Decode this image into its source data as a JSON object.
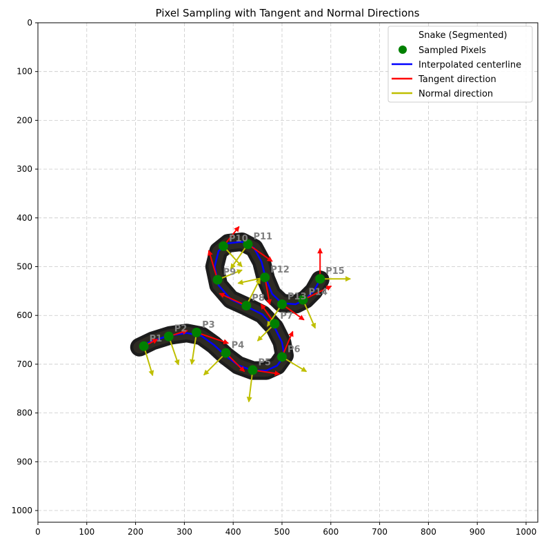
{
  "chart_data": {
    "type": "scatter",
    "title": "Pixel Sampling with Tangent and Normal Directions",
    "xlabel": "",
    "ylabel": "",
    "xlim": [
      0,
      1024
    ],
    "ylim": [
      1024,
      0
    ],
    "x_ticks": [
      "0",
      "100",
      "200",
      "300",
      "400",
      "500",
      "600",
      "700",
      "800",
      "900",
      "1000"
    ],
    "y_ticks": [
      "0",
      "100",
      "200",
      "300",
      "400",
      "500",
      "600",
      "700",
      "800",
      "900",
      "1000"
    ],
    "grid": true,
    "legend_position": "top-right",
    "legend": [
      {
        "label": "Snake (Segmented)",
        "marker": "none"
      },
      {
        "label": "Sampled Pixels",
        "marker": "circle",
        "color": "#008000"
      },
      {
        "label": "Interpolated centerline",
        "marker": "line",
        "color": "#0000ff"
      },
      {
        "label": "Tangent direction",
        "marker": "line",
        "color": "#ff0000"
      },
      {
        "label": "Normal direction",
        "marker": "line",
        "color": "#bfbf00"
      }
    ],
    "colors": {
      "snake": "#1c1c1c",
      "points": "#008000",
      "centerline": "#0000ff",
      "tangent": "#ff0000",
      "normal": "#bfbf00",
      "labels": "#808080"
    },
    "points": [
      {
        "label": "P1",
        "x": 217,
        "y": 663,
        "tx": 28,
        "ty": -14,
        "nx": 18,
        "ny": 60
      },
      {
        "label": "P2",
        "x": 268,
        "y": 643,
        "tx": 38,
        "ty": -12,
        "nx": 20,
        "ny": 58
      },
      {
        "label": "P3",
        "x": 325,
        "y": 635,
        "tx": 65,
        "ty": 22,
        "nx": -10,
        "ny": 65
      },
      {
        "label": "P4",
        "x": 385,
        "y": 677,
        "tx": 38,
        "ty": 38,
        "nx": -45,
        "ny": 45
      },
      {
        "label": "P5",
        "x": 440,
        "y": 712,
        "tx": 55,
        "ty": 8,
        "nx": -8,
        "ny": 65
      },
      {
        "label": "P6",
        "x": 500,
        "y": 685,
        "tx": 22,
        "ty": -52,
        "nx": 50,
        "ny": 30
      },
      {
        "label": "P7",
        "x": 485,
        "y": 617,
        "tx": -28,
        "ty": -40,
        "nx": -35,
        "ny": 35
      },
      {
        "label": "P8",
        "x": 427,
        "y": 580,
        "tx": -55,
        "ty": -25,
        "nx": 28,
        "ny": -55
      },
      {
        "label": "P9",
        "x": 368,
        "y": 527,
        "tx": -18,
        "ty": -60,
        "nx": 50,
        "ny": -20
      },
      {
        "label": "P10",
        "x": 380,
        "y": 458,
        "tx": 32,
        "ty": -40,
        "nx": 38,
        "ny": 42
      },
      {
        "label": "P11",
        "x": 430,
        "y": 454,
        "tx": 50,
        "ty": 35,
        "nx": -35,
        "ny": 50
      },
      {
        "label": "P12",
        "x": 465,
        "y": 522,
        "tx": 10,
        "ty": 55,
        "nx": -55,
        "ny": 12
      },
      {
        "label": "P13",
        "x": 500,
        "y": 577,
        "tx": 45,
        "ty": 32,
        "nx": -30,
        "ny": 45
      },
      {
        "label": "P14",
        "x": 543,
        "y": 568,
        "tx": 58,
        "ty": -28,
        "nx": 25,
        "ny": 58
      },
      {
        "label": "P15",
        "x": 578,
        "y": 525,
        "tx": 0,
        "ty": -62,
        "nx": 62,
        "ny": 0
      }
    ],
    "centerline": [
      [
        208,
        665
      ],
      [
        235,
        652
      ],
      [
        270,
        641
      ],
      [
        305,
        636
      ],
      [
        335,
        642
      ],
      [
        360,
        660
      ],
      [
        385,
        683
      ],
      [
        410,
        702
      ],
      [
        440,
        713
      ],
      [
        468,
        713
      ],
      [
        490,
        703
      ],
      [
        505,
        682
      ],
      [
        500,
        655
      ],
      [
        485,
        625
      ],
      [
        460,
        598
      ],
      [
        428,
        582
      ],
      [
        395,
        567
      ],
      [
        370,
        538
      ],
      [
        362,
        500
      ],
      [
        370,
        468
      ],
      [
        390,
        452
      ],
      [
        418,
        449
      ],
      [
        443,
        462
      ],
      [
        458,
        490
      ],
      [
        467,
        525
      ],
      [
        480,
        556
      ],
      [
        500,
        575
      ],
      [
        528,
        577
      ],
      [
        548,
        567
      ],
      [
        565,
        550
      ],
      [
        578,
        527
      ]
    ]
  }
}
